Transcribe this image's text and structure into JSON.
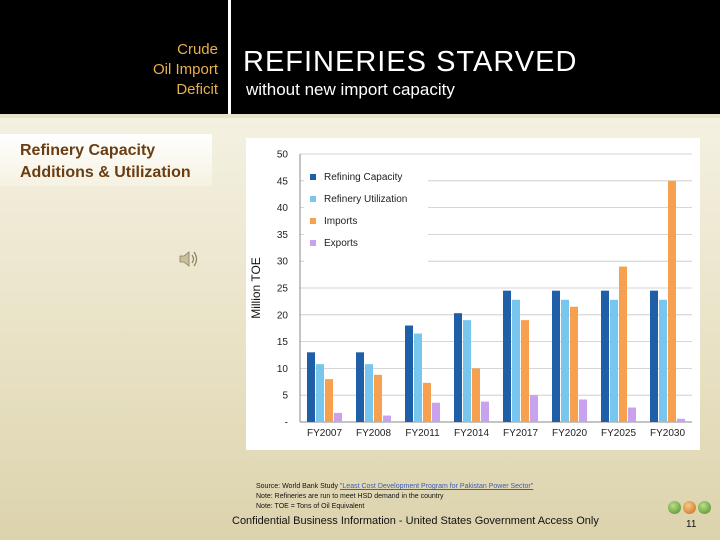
{
  "header": {
    "section_lines": [
      "Crude",
      "Oil Import",
      "Deficit"
    ],
    "title": "REFINERIES STARVED",
    "subtitle": "without new import capacity"
  },
  "sidebar": {
    "title_lines": [
      "Refinery Capacity",
      "Additions & Utilization"
    ]
  },
  "audio_icon": "speaker-icon",
  "chart_data": {
    "type": "bar",
    "categories": [
      "FY2007",
      "FY2008",
      "FY2011",
      "FY2014",
      "FY2017",
      "FY2020",
      "FY2025",
      "FY2030"
    ],
    "series": [
      {
        "name": "Refining Capacity",
        "color": "#1f5fa8",
        "values": [
          13,
          13,
          18,
          20.3,
          24.5,
          24.5,
          24.5,
          24.5
        ]
      },
      {
        "name": "Refinery Utilization",
        "color": "#78c6ee",
        "values": [
          10.8,
          10.8,
          16.5,
          19,
          22.8,
          22.8,
          22.8,
          22.8
        ]
      },
      {
        "name": "Imports",
        "color": "#f7a050",
        "values": [
          8,
          8.8,
          7.3,
          10,
          19,
          21.5,
          29,
          45
        ]
      },
      {
        "name": "Exports",
        "color": "#c8a2ec",
        "values": [
          1.7,
          1.2,
          3.6,
          3.8,
          5,
          4.2,
          2.7,
          0.6
        ]
      }
    ],
    "ylabel": "Million TOE",
    "xlabel": "",
    "ylim": [
      0,
      50
    ],
    "yticks": [
      0,
      5,
      10,
      15,
      20,
      25,
      30,
      35,
      40,
      45,
      50
    ],
    "ytick_labels": [
      "-",
      "5",
      "10",
      "15",
      "20",
      "25",
      "30",
      "35",
      "40",
      "45",
      "50"
    ],
    "grid": true,
    "legend_position": "top-left"
  },
  "source": {
    "prefix": "Source: World Bank Study ",
    "link_text": "\"Least Cost Development Program for Pakistan Power Sector\"",
    "note1": "Note: Refineries are run to meet HSD demand in the country",
    "note2": "Note: TOE = Tons of Oil Equivalent"
  },
  "footer": {
    "confidential": "Confidential Business Information - United States Government Access Only",
    "page_number": "11"
  }
}
